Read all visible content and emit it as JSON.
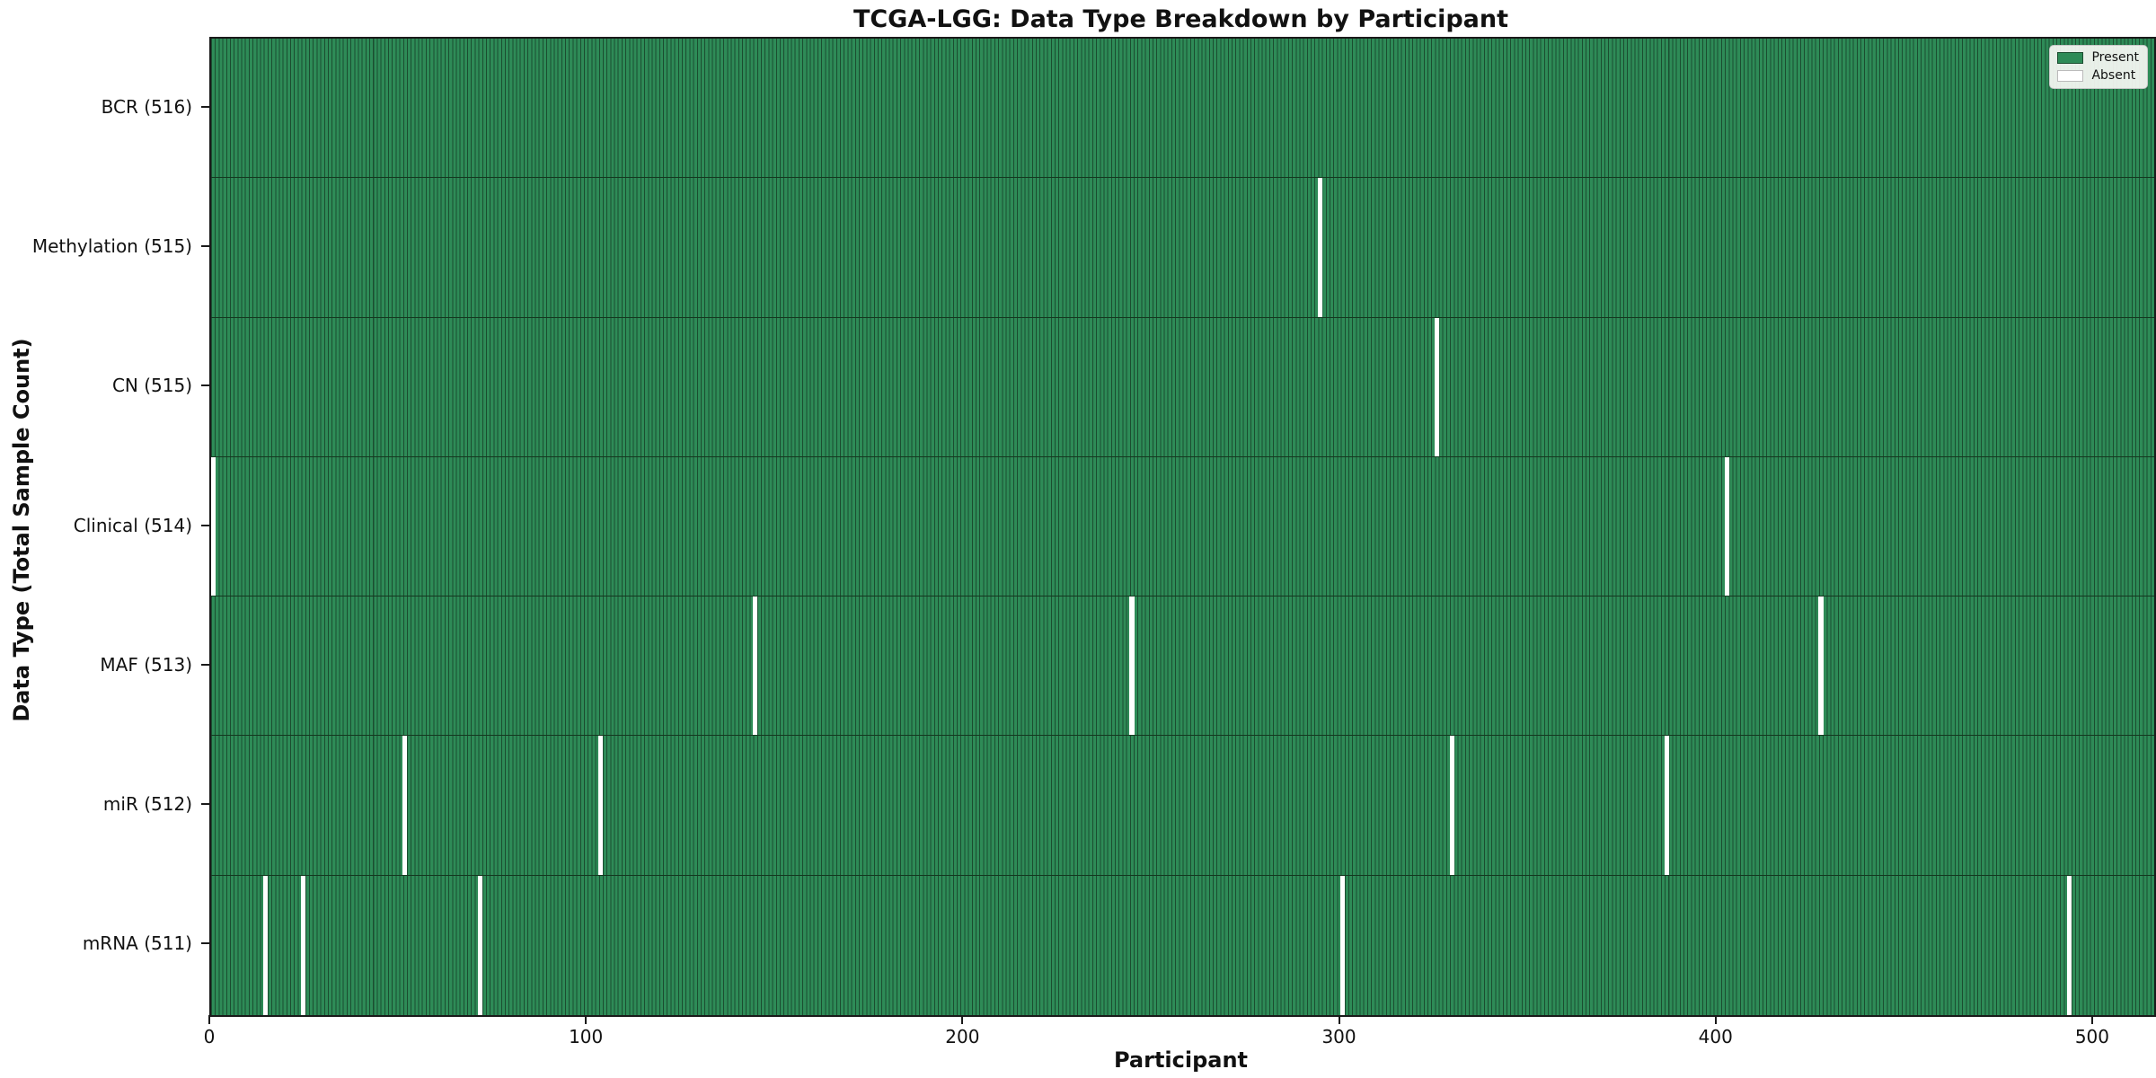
{
  "chart_data": {
    "type": "heatmap",
    "title": "TCGA-LGG: Data Type Breakdown by Participant",
    "xlabel": "Participant",
    "ylabel": "Data Type (Total Sample Count)",
    "x_ticks": [
      0,
      100,
      200,
      300,
      400,
      500
    ],
    "x_axis_range": [
      0,
      516
    ],
    "n_participants": 516,
    "grid": false,
    "legend_position": "upper right",
    "legend": [
      {
        "label": "Present",
        "color": "#2e8b57"
      },
      {
        "label": "Absent",
        "color": "#ffffff"
      }
    ],
    "colors": {
      "present": "#2e8b57",
      "cell_edge": "#1b4d30",
      "absent": "#ffffff"
    },
    "rows": [
      {
        "label": "BCR (516)",
        "present_count": 516,
        "absent_count": 0,
        "absent_participants": []
      },
      {
        "label": "Methylation (515)",
        "present_count": 515,
        "absent_count": 1,
        "absent_participants": [
          294
        ]
      },
      {
        "label": "CN (515)",
        "present_count": 515,
        "absent_count": 1,
        "absent_participants": [
          325
        ]
      },
      {
        "label": "Clinical (514)",
        "present_count": 514,
        "absent_count": 2,
        "absent_participants": [
          0,
          402
        ]
      },
      {
        "label": "MAF (513)",
        "present_count": 513,
        "absent_count": 3,
        "absent_participants": [
          144,
          244,
          427
        ]
      },
      {
        "label": "miR (512)",
        "present_count": 512,
        "absent_count": 4,
        "absent_participants": [
          51,
          103,
          329,
          386
        ]
      },
      {
        "label": "mRNA (511)",
        "present_count": 511,
        "absent_count": 5,
        "absent_participants": [
          14,
          24,
          71,
          300,
          493
        ]
      }
    ]
  }
}
